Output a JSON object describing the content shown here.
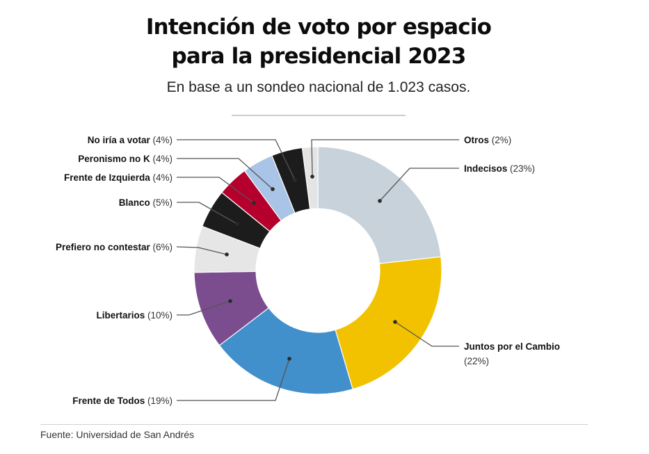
{
  "header": {
    "title_line1": "Intención de voto por espacio",
    "title_line2": "para la presidencial 2023",
    "subtitle": "En base a un sondeo nacional de 1.023 casos."
  },
  "footer": {
    "source": "Fuente: Universidad de San Andrés"
  },
  "chart_data": {
    "type": "pie",
    "variant": "donut",
    "title": "Intención de voto por espacio para la presidencial 2023",
    "subtitle": "En base a un sondeo nacional de 1.023 casos.",
    "unit": "%",
    "start": "top",
    "direction": "clockwise",
    "slices": [
      {
        "label": "Indecisos",
        "value": 23,
        "pct_label": "(23%)",
        "color": "#c7d2da",
        "side": "right"
      },
      {
        "label": "Juntos por el Cambio",
        "value": 22,
        "pct_label": "(22%)",
        "color": "#f2c200",
        "side": "right"
      },
      {
        "label": "Frente de Todos",
        "value": 19,
        "pct_label": "(19%)",
        "color": "#418fcb",
        "side": "left"
      },
      {
        "label": "Libertarios",
        "value": 10,
        "pct_label": "(10%)",
        "color": "#7b4d8e",
        "side": "left"
      },
      {
        "label": "Prefiero no contestar",
        "value": 6,
        "pct_label": "(6%)",
        "color": "#e6e6e6",
        "side": "left"
      },
      {
        "label": "Blanco",
        "value": 5,
        "pct_label": "(5%)",
        "color": "#1c1c1c",
        "side": "left"
      },
      {
        "label": "Frente de Izquierda",
        "value": 4,
        "pct_label": "(4%)",
        "color": "#b5002d",
        "side": "left"
      },
      {
        "label": "Peronismo no K",
        "value": 4,
        "pct_label": "(4%)",
        "color": "#a9c4e6",
        "side": "left"
      },
      {
        "label": "No iría a votar",
        "value": 4,
        "pct_label": "(4%)",
        "color": "#1c1c1c",
        "side": "left"
      },
      {
        "label": "Otros",
        "value": 2,
        "pct_label": "(2%)",
        "color": "#e4e4e4",
        "side": "right"
      }
    ],
    "source": "Fuente: Universidad de San Andrés"
  }
}
